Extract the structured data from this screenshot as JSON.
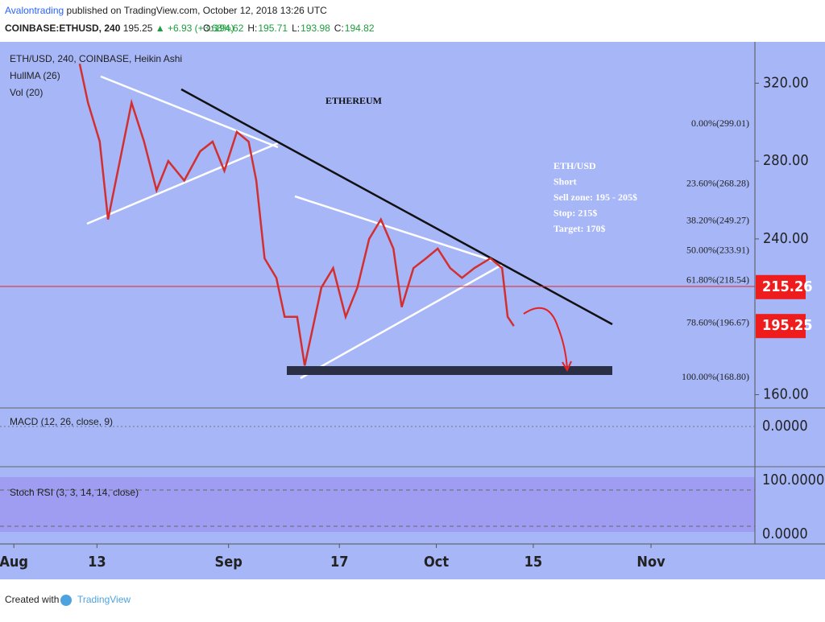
{
  "header": {
    "author": "Avalontrading",
    "published": "published on TradingView.com, October 12, 2018 13:26 UTC",
    "symbol": "COINBASE:ETHUSD, 240",
    "last": "195.25",
    "change": "▲ +6.93 (+3.68%)",
    "quote": [
      {
        "label": "O:",
        "value": "194.62"
      },
      {
        "label": "H:",
        "value": "195.71"
      },
      {
        "label": "L:",
        "value": "193.98"
      },
      {
        "label": "C:",
        "value": "194.82"
      }
    ]
  },
  "chart_data": {
    "type": "line",
    "title": "ETHEREUM",
    "legend_lines": [
      "ETH/USD, 240, COINBASE, Heikin Ashi",
      "HullMA (26)",
      "Vol (20)"
    ],
    "x": [
      9.5,
      10.7,
      12.4,
      13.6,
      15.3,
      17,
      18.8,
      20.6,
      22.3,
      24.6,
      26.9,
      28.7,
      30.4,
      32.2,
      33.9,
      35,
      36.2,
      37.9,
      39.1,
      40.9,
      42,
      43.2,
      44.4,
      46.1,
      47.9,
      49.6,
      51.3,
      53,
      54.8,
      56,
      57.7,
      59.5,
      61.2,
      63,
      64.7,
      66.5,
      68.8,
      70.5,
      71.3,
      72.2
    ],
    "values": [
      330,
      310,
      290,
      250,
      280,
      310,
      290,
      265,
      280,
      270,
      285,
      290,
      275,
      295,
      290,
      270,
      230,
      220,
      200,
      200,
      175,
      195,
      215,
      225,
      200,
      215,
      240,
      250,
      235,
      205,
      225,
      230,
      235,
      225,
      220,
      225,
      230,
      225,
      200,
      195.25
    ],
    "color": "#d32f2f",
    "xlim": [
      -2,
      107
    ],
    "xticks": [
      {
        "value": 0,
        "label": "Aug"
      },
      {
        "value": 12,
        "label": "13"
      },
      {
        "value": 31,
        "label": "Sep"
      },
      {
        "value": 47,
        "label": "17"
      },
      {
        "value": 61,
        "label": "Oct"
      },
      {
        "value": 75,
        "label": "15"
      },
      {
        "value": 92,
        "label": "Nov"
      }
    ],
    "ylim": [
      154,
      340
    ],
    "yticks": [
      {
        "value": 160,
        "label": "160.00"
      },
      {
        "value": 240,
        "label": "240.00"
      },
      {
        "value": 280,
        "label": "280.00"
      },
      {
        "value": 320,
        "label": "320.00"
      }
    ],
    "price_labels": [
      {
        "value": 215.26,
        "label": "215.26"
      },
      {
        "value": 195.25,
        "label": "195.25"
      }
    ],
    "fib_levels": [
      {
        "value": 299.01,
        "label": "0.00%(299.01)"
      },
      {
        "value": 268.28,
        "label": "23.60%(268.28)"
      },
      {
        "value": 249.27,
        "label": "38.20%(249.27)"
      },
      {
        "value": 233.91,
        "label": "50.00%(233.91)"
      },
      {
        "value": 218.54,
        "label": "61.80%(218.54)"
      },
      {
        "value": 196.67,
        "label": "78.60%(196.67)"
      },
      {
        "value": 168.8,
        "label": "100.00%(168.80)"
      }
    ],
    "note": [
      "ETH/USD",
      "Short",
      "Sell zone: 195 - 205$",
      "Stop: 215$",
      "Target: 170$"
    ]
  },
  "macd": {
    "label": "MACD (12, 26, close, 9)",
    "tick": "0.0000"
  },
  "stoch": {
    "label": "Stoch RSI (3, 3, 14, 14, close)",
    "ticks": [
      "100.0000",
      "0.0000"
    ]
  },
  "footer": {
    "created": "Created with",
    "brand": "TradingView"
  }
}
